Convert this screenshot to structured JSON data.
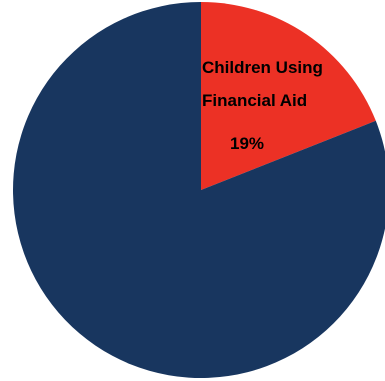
{
  "chart_data": {
    "type": "pie",
    "slices": [
      {
        "label": "Children Using Financial Aid",
        "value": 19,
        "value_label": "19%",
        "color": "#ec3125"
      },
      {
        "label": "",
        "value": 81,
        "value_label": "",
        "color": "#18365f"
      }
    ],
    "start_angle_deg": 0,
    "direction": "clockwise",
    "legend": "none"
  }
}
